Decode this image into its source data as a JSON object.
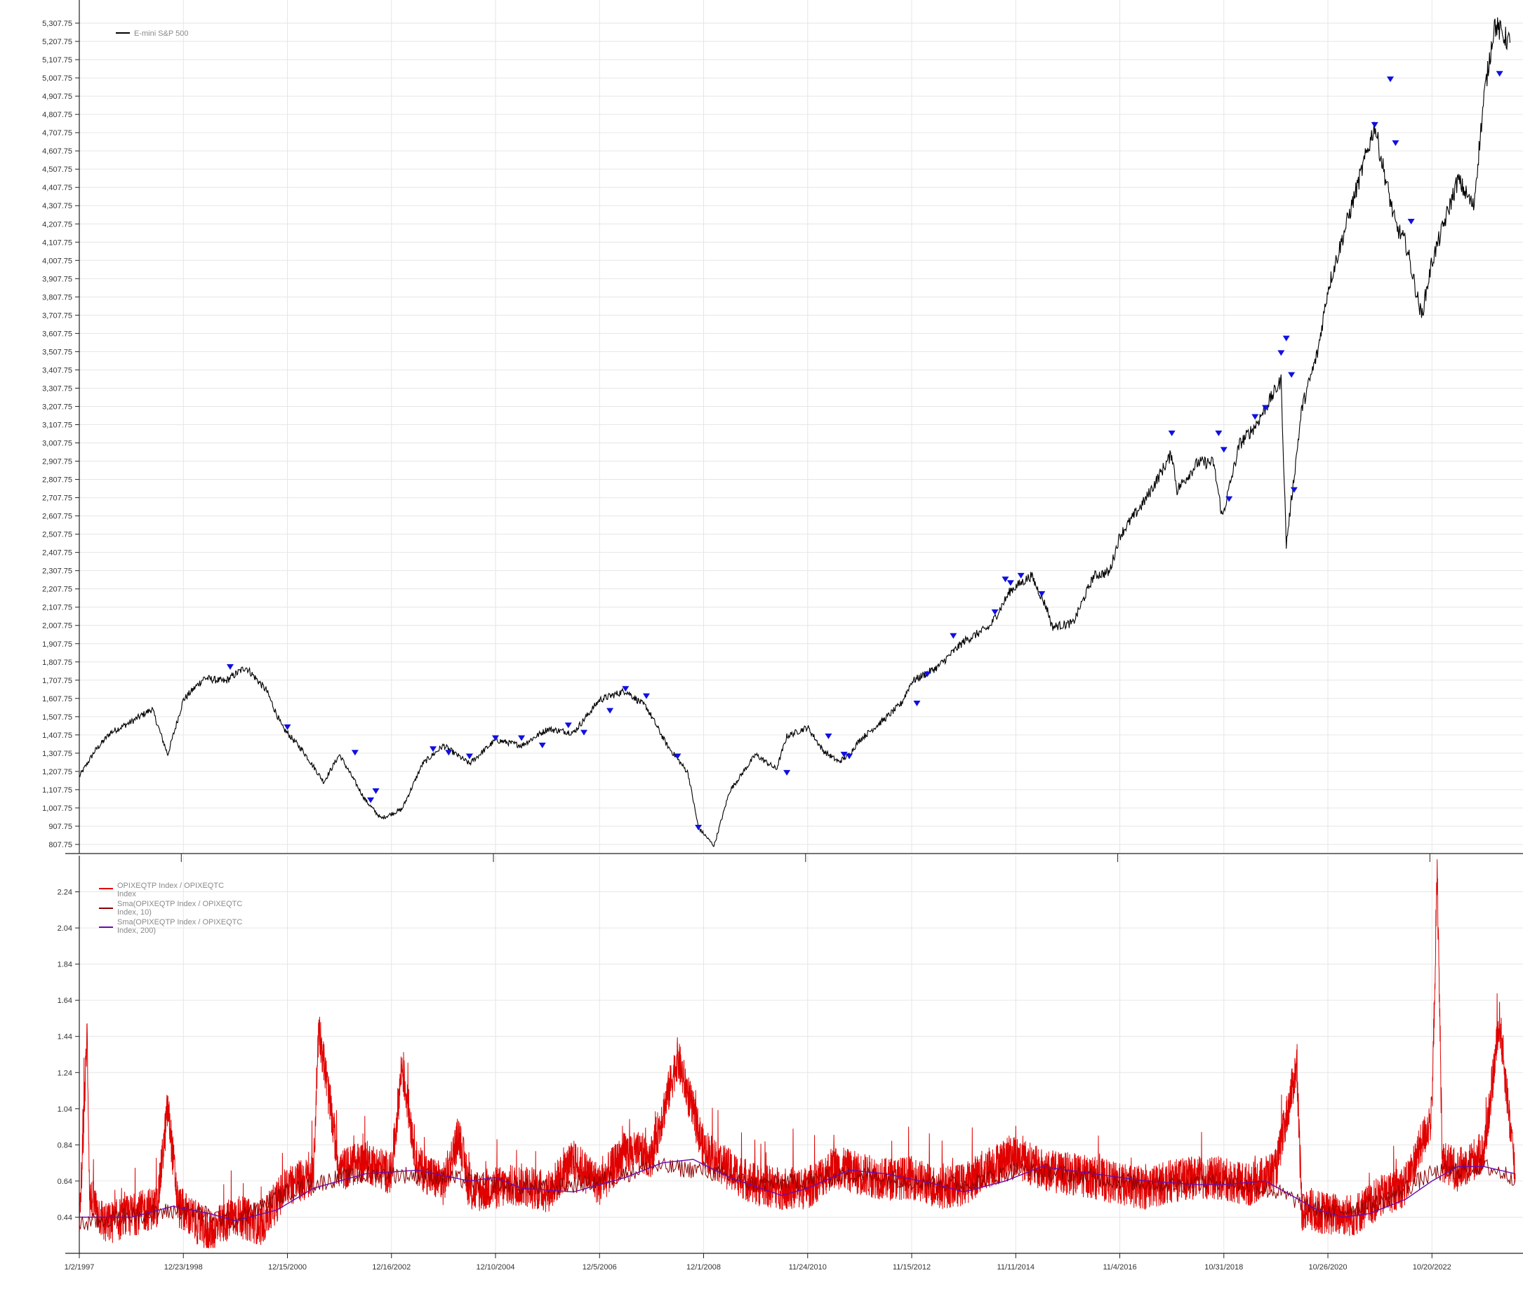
{
  "colors": {
    "price": "#000000",
    "signal": "#1010e0",
    "ratio": "#e00000",
    "sma10": "#8b0000",
    "sma200": "#6a0dad",
    "grid": "#e6e6e6",
    "axis": "#222222"
  },
  "chart_data": [
    {
      "type": "line",
      "title": "",
      "legend": {
        "placement": "top-left",
        "entries": [
          "E-mini S&P 500"
        ]
      },
      "grid": true,
      "ylim": [
        757.75,
        5357.75
      ],
      "yticks": [
        "5,307.75",
        "5,207.75",
        "5,107.75",
        "5,007.75",
        "4,907.75",
        "4,807.75",
        "4,707.75",
        "4,607.75",
        "4,507.75",
        "4,407.75",
        "4,307.75",
        "4,207.75",
        "4,107.75",
        "4,007.75",
        "3,907.75",
        "3,807.75",
        "3,707.75",
        "3,607.75",
        "3,507.75",
        "3,407.75",
        "3,307.75",
        "3,207.75",
        "3,107.75",
        "3,007.75",
        "2,907.75",
        "2,807.75",
        "2,707.75",
        "2,607.75",
        "2,507.75",
        "2,407.75",
        "2,307.75",
        "2,207.75",
        "2,107.75",
        "2,007.75",
        "1,907.75",
        "1,807.75",
        "1,707.75",
        "1,607.75",
        "1,507.75",
        "1,407.75",
        "1,307.75",
        "1,207.75",
        "1,107.75",
        "1,007.75",
        "907.75",
        "807.75"
      ],
      "series": [
        {
          "name": "E-mini S&P 500",
          "x": [
            1997.0,
            1997.3,
            1997.6,
            1998.0,
            1998.4,
            1998.7,
            1999.0,
            1999.4,
            1999.8,
            2000.2,
            2000.6,
            2000.9,
            2001.3,
            2001.7,
            2002.0,
            2002.5,
            2002.8,
            2003.2,
            2003.6,
            2004.0,
            2004.5,
            2005.0,
            2005.5,
            2006.0,
            2006.5,
            2007.0,
            2007.5,
            2007.9,
            2008.3,
            2008.7,
            2008.9,
            2009.2,
            2009.5,
            2010.0,
            2010.4,
            2010.6,
            2011.0,
            2011.3,
            2011.6,
            2011.8,
            2012.0,
            2012.5,
            2012.8,
            2013.0,
            2013.5,
            2014.0,
            2014.5,
            2014.9,
            2015.3,
            2015.6,
            2015.7,
            2016.1,
            2016.5,
            2016.8,
            2017.0,
            2017.5,
            2018.0,
            2018.1,
            2018.5,
            2018.8,
            2018.97,
            2019.3,
            2019.6,
            2020.1,
            2020.2,
            2020.5,
            2020.8,
            2021.0,
            2021.5,
            2021.9,
            2022.0,
            2022.3,
            2022.5,
            2022.8,
            2023.0,
            2023.5,
            2023.8,
            2024.0,
            2024.2,
            2024.5
          ],
          "y": [
            1180,
            1320,
            1420,
            1480,
            1550,
            1300,
            1600,
            1720,
            1700,
            1780,
            1650,
            1450,
            1320,
            1150,
            1300,
            1050,
            950,
            1000,
            1250,
            1350,
            1250,
            1380,
            1350,
            1440,
            1420,
            1600,
            1650,
            1560,
            1350,
            1200,
            900,
            800,
            1100,
            1300,
            1220,
            1400,
            1450,
            1320,
            1260,
            1300,
            1380,
            1500,
            1580,
            1700,
            1780,
            1920,
            2000,
            2200,
            2280,
            2100,
            2000,
            2020,
            2280,
            2300,
            2500,
            2700,
            2950,
            2750,
            2900,
            2900,
            2600,
            3000,
            3100,
            3350,
            2450,
            3200,
            3500,
            3850,
            4350,
            4750,
            4600,
            4200,
            4100,
            3700,
            4000,
            4450,
            4300,
            4900,
            5300,
            5200
          ]
        }
      ],
      "signals": [
        {
          "x": 1999.9,
          "y": 1780
        },
        {
          "x": 2001.0,
          "y": 1450
        },
        {
          "x": 2002.3,
          "y": 1310
        },
        {
          "x": 2002.6,
          "y": 1050
        },
        {
          "x": 2002.7,
          "y": 1100
        },
        {
          "x": 2003.8,
          "y": 1330
        },
        {
          "x": 2004.1,
          "y": 1310
        },
        {
          "x": 2004.5,
          "y": 1290
        },
        {
          "x": 2005.0,
          "y": 1390
        },
        {
          "x": 2005.5,
          "y": 1390
        },
        {
          "x": 2005.9,
          "y": 1350
        },
        {
          "x": 2006.4,
          "y": 1460
        },
        {
          "x": 2006.7,
          "y": 1420
        },
        {
          "x": 2007.2,
          "y": 1540
        },
        {
          "x": 2007.5,
          "y": 1660
        },
        {
          "x": 2007.9,
          "y": 1620
        },
        {
          "x": 2008.5,
          "y": 1290
        },
        {
          "x": 2008.9,
          "y": 900
        },
        {
          "x": 2010.6,
          "y": 1200
        },
        {
          "x": 2011.4,
          "y": 1400
        },
        {
          "x": 2011.7,
          "y": 1300
        },
        {
          "x": 2011.8,
          "y": 1290
        },
        {
          "x": 2013.1,
          "y": 1580
        },
        {
          "x": 2013.3,
          "y": 1740
        },
        {
          "x": 2013.8,
          "y": 1950
        },
        {
          "x": 2014.6,
          "y": 2080
        },
        {
          "x": 2014.8,
          "y": 2260
        },
        {
          "x": 2014.9,
          "y": 2240
        },
        {
          "x": 2015.1,
          "y": 2280
        },
        {
          "x": 2015.5,
          "y": 2180
        },
        {
          "x": 2018.0,
          "y": 3060
        },
        {
          "x": 2018.9,
          "y": 3060
        },
        {
          "x": 2019.0,
          "y": 2970
        },
        {
          "x": 2019.1,
          "y": 2700
        },
        {
          "x": 2019.6,
          "y": 3150
        },
        {
          "x": 2019.8,
          "y": 3200
        },
        {
          "x": 2020.1,
          "y": 3500
        },
        {
          "x": 2020.2,
          "y": 3580
        },
        {
          "x": 2020.3,
          "y": 3380
        },
        {
          "x": 2020.35,
          "y": 2750
        },
        {
          "x": 2021.9,
          "y": 4750
        },
        {
          "x": 2022.2,
          "y": 5000
        },
        {
          "x": 2022.3,
          "y": 4650
        },
        {
          "x": 2022.6,
          "y": 4220
        },
        {
          "x": 2024.3,
          "y": 5030
        }
      ]
    },
    {
      "type": "line",
      "title": "",
      "legend": {
        "placement": "top-left",
        "entries": [
          "OPIXEQTP Index / OPIXEQTC Index",
          "Sma(OPIXEQTP Index / OPIXEQTC Index, 10)",
          "Sma(OPIXEQTP Index / OPIXEQTC Index, 200)"
        ]
      },
      "grid": true,
      "ylim": [
        0.24,
        2.44
      ],
      "yticks": [
        "2.24",
        "2.04",
        "1.84",
        "1.64",
        "1.44",
        "1.24",
        "1.04",
        "0.84",
        "0.64",
        "0.44"
      ],
      "xlim": [
        1997.0,
        2024.75
      ],
      "xticks": [
        "1/2/1997",
        "12/23/1998",
        "12/15/2000",
        "12/16/2002",
        "12/10/2004",
        "12/5/2006",
        "12/1/2008",
        "11/24/2010",
        "11/15/2012",
        "11/11/2014",
        "11/4/2016",
        "10/31/2018",
        "10/26/2020",
        "10/20/2022"
      ],
      "xtick_positions": [
        1997.0,
        1999.0,
        2001.0,
        2003.0,
        2005.0,
        2007.0,
        2009.0,
        2011.0,
        2013.0,
        2015.0,
        2017.0,
        2019.0,
        2021.0,
        2023.0
      ],
      "series": [
        {
          "name": "OPIXEQTP Index / OPIXEQTC Index",
          "x": [
            1997.0,
            1997.15,
            1997.2,
            1997.5,
            1998.0,
            1998.5,
            1998.7,
            1998.9,
            1999.5,
            2000.0,
            2000.5,
            2001.0,
            2001.5,
            2001.6,
            2002.0,
            2002.5,
            2003.0,
            2003.2,
            2003.5,
            2004.0,
            2004.3,
            2004.5,
            2005.0,
            2005.5,
            2006.0,
            2006.5,
            2007.0,
            2007.5,
            2008.0,
            2008.5,
            2009.0,
            2009.5,
            2010.0,
            2010.5,
            2011.0,
            2011.5,
            2012.0,
            2012.5,
            2013.0,
            2013.5,
            2014.0,
            2014.5,
            2015.0,
            2015.5,
            2016.0,
            2016.5,
            2017.0,
            2017.5,
            2018.0,
            2018.5,
            2019.0,
            2019.5,
            2020.0,
            2020.4,
            2020.5,
            2021.0,
            2021.5,
            2022.0,
            2022.5,
            2023.0,
            2023.1,
            2023.2,
            2023.5,
            2024.0,
            2024.3,
            2024.6
          ],
          "y": [
            0.35,
            1.46,
            0.55,
            0.4,
            0.45,
            0.5,
            1.05,
            0.5,
            0.35,
            0.45,
            0.4,
            0.62,
            0.66,
            1.5,
            0.7,
            0.75,
            0.68,
            1.28,
            0.72,
            0.62,
            0.9,
            0.58,
            0.6,
            0.62,
            0.58,
            0.75,
            0.62,
            0.8,
            0.78,
            1.32,
            0.82,
            0.7,
            0.62,
            0.6,
            0.6,
            0.72,
            0.68,
            0.65,
            0.66,
            0.6,
            0.62,
            0.72,
            0.78,
            0.7,
            0.68,
            0.66,
            0.62,
            0.6,
            0.64,
            0.66,
            0.65,
            0.62,
            0.7,
            1.28,
            0.48,
            0.46,
            0.45,
            0.55,
            0.62,
            1.0,
            2.35,
            0.75,
            0.7,
            0.8,
            1.52,
            0.68
          ]
        },
        {
          "name": "Sma(OPIXEQTP Index / OPIXEQTC Index, 10)",
          "x": [
            1997.0,
            1998.0,
            1999.0,
            2000.0,
            2001.0,
            2002.0,
            2003.0,
            2004.0,
            2005.0,
            2006.0,
            2007.0,
            2008.0,
            2009.0,
            2010.0,
            2011.0,
            2012.0,
            2013.0,
            2014.0,
            2015.0,
            2016.0,
            2017.0,
            2018.0,
            2019.0,
            2020.0,
            2021.0,
            2022.0,
            2023.0,
            2024.0,
            2024.6
          ],
          "y": [
            0.4,
            0.45,
            0.48,
            0.42,
            0.58,
            0.66,
            0.68,
            0.66,
            0.62,
            0.6,
            0.64,
            0.72,
            0.7,
            0.62,
            0.64,
            0.68,
            0.64,
            0.62,
            0.7,
            0.68,
            0.64,
            0.62,
            0.64,
            0.58,
            0.46,
            0.52,
            0.68,
            0.72,
            0.66
          ]
        },
        {
          "name": "Sma(OPIXEQTP Index / OPIXEQTC Index, 200)",
          "x": [
            1997.0,
            1998.0,
            1998.8,
            1999.5,
            2000.0,
            2000.8,
            2001.5,
            2002.5,
            2003.5,
            2004.5,
            2005.0,
            2005.5,
            2006.5,
            2007.5,
            2008.2,
            2008.8,
            2009.5,
            2010.5,
            2011.0,
            2011.8,
            2012.5,
            2013.5,
            2014.0,
            2014.8,
            2015.5,
            2016.5,
            2017.5,
            2018.5,
            2019.0,
            2019.8,
            2020.3,
            2020.8,
            2021.3,
            2021.8,
            2022.5,
            2023.0,
            2023.5,
            2024.0,
            2024.6
          ],
          "y": [
            0.44,
            0.44,
            0.5,
            0.46,
            0.42,
            0.48,
            0.6,
            0.68,
            0.7,
            0.64,
            0.66,
            0.6,
            0.58,
            0.66,
            0.74,
            0.76,
            0.66,
            0.56,
            0.6,
            0.7,
            0.68,
            0.62,
            0.58,
            0.64,
            0.72,
            0.68,
            0.64,
            0.62,
            0.62,
            0.64,
            0.56,
            0.48,
            0.44,
            0.46,
            0.54,
            0.64,
            0.72,
            0.72,
            0.68
          ]
        }
      ]
    }
  ]
}
